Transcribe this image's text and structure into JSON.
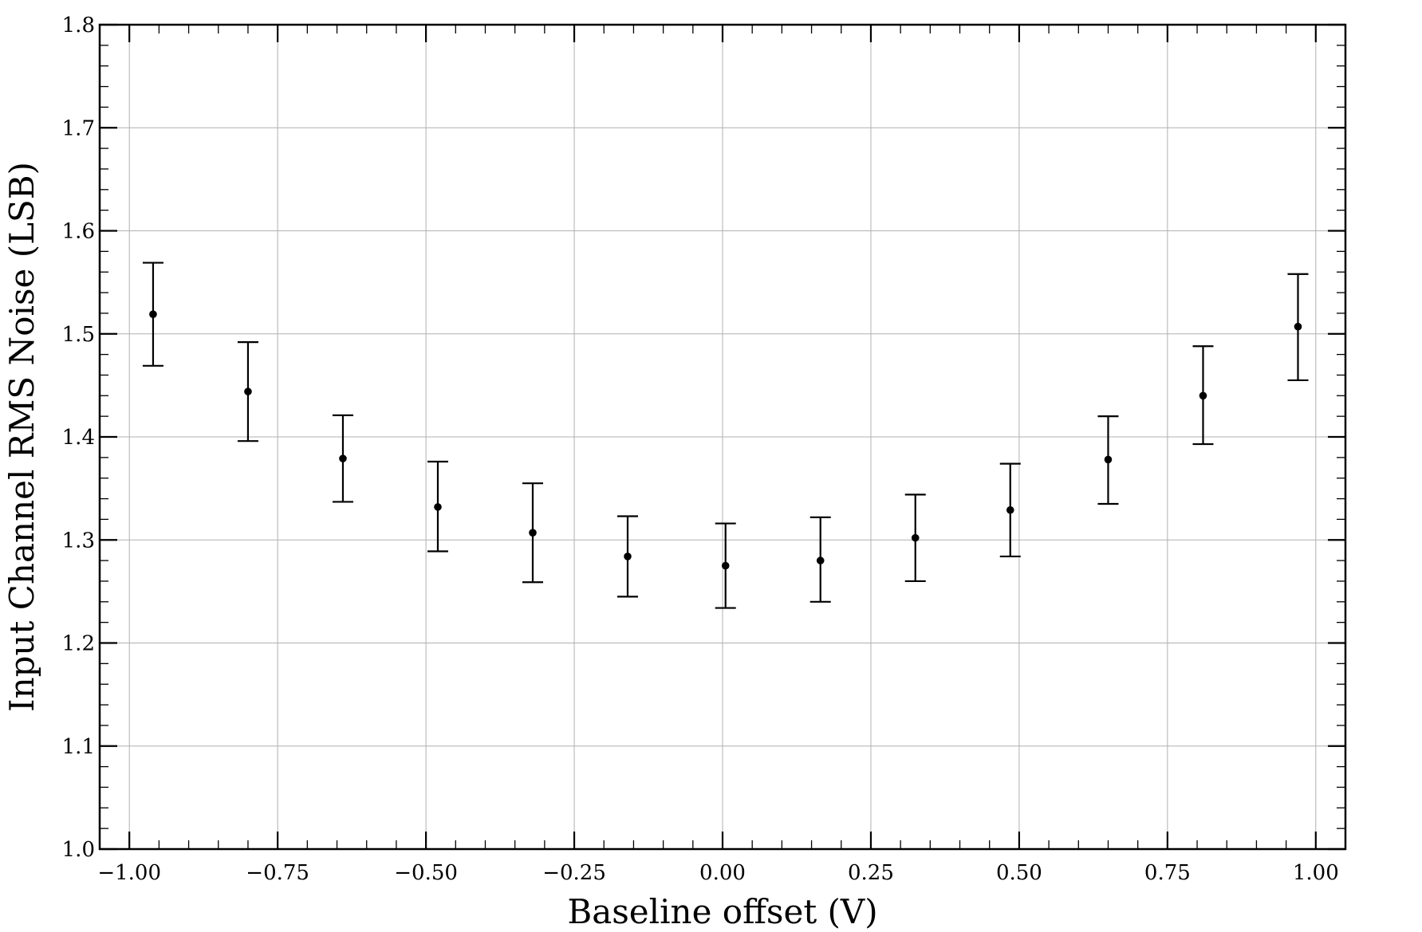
{
  "chart_data": {
    "type": "scatter",
    "title": "",
    "xlabel": "Baseline offset (V)",
    "ylabel": "Input Channel RMS Noise (LSB)",
    "xlim": [
      -1.05,
      1.05
    ],
    "ylim": [
      1.0,
      1.8
    ],
    "x_ticks": [
      -1.0,
      -0.75,
      -0.5,
      -0.25,
      0.0,
      0.25,
      0.5,
      0.75,
      1.0
    ],
    "x_tick_labels": [
      "−1.00",
      "−0.75",
      "−0.50",
      "−0.25",
      "0.00",
      "0.25",
      "0.50",
      "0.75",
      "1.00"
    ],
    "y_ticks": [
      1.0,
      1.1,
      1.2,
      1.3,
      1.4,
      1.5,
      1.6,
      1.7,
      1.8
    ],
    "y_tick_labels": [
      "1.0",
      "1.1",
      "1.2",
      "1.3",
      "1.4",
      "1.5",
      "1.6",
      "1.7",
      "1.8"
    ],
    "grid": true,
    "legend": "none",
    "colors": {
      "marker": "#000000",
      "grid": "#b0b0b0"
    },
    "series": [
      {
        "x": [
          -0.96,
          -0.8,
          -0.64,
          -0.48,
          -0.32,
          -0.16,
          0.005,
          0.165,
          0.325,
          0.485,
          0.65,
          0.81,
          0.97
        ],
        "y": [
          1.519,
          1.444,
          1.379,
          1.332,
          1.307,
          1.284,
          1.275,
          1.28,
          1.302,
          1.329,
          1.378,
          1.44,
          1.507
        ],
        "yerr_low": [
          1.469,
          1.396,
          1.337,
          1.289,
          1.259,
          1.245,
          1.234,
          1.24,
          1.26,
          1.284,
          1.335,
          1.393,
          1.455
        ],
        "yerr_high": [
          1.569,
          1.492,
          1.421,
          1.376,
          1.355,
          1.323,
          1.316,
          1.322,
          1.344,
          1.374,
          1.42,
          1.488,
          1.558
        ]
      }
    ]
  }
}
